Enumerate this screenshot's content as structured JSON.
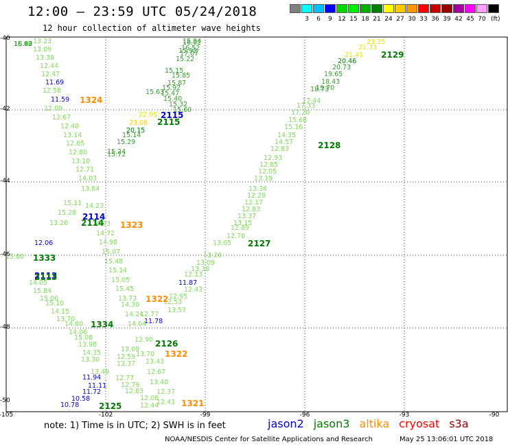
{
  "header": {
    "title": "12:00 – 23:59 UTC 05/24/2018",
    "subtitle": "12 hour collection of altimeter wave heights"
  },
  "colorbar": {
    "unit": "(ft)",
    "entries": [
      {
        "label": "",
        "color": "#7f7f7f"
      },
      {
        "label": "3",
        "color": "#00ffff"
      },
      {
        "label": "6",
        "color": "#00bfff"
      },
      {
        "label": "9",
        "color": "#0000ff"
      },
      {
        "label": "12",
        "color": "#00d800"
      },
      {
        "label": "15",
        "color": "#00f000"
      },
      {
        "label": "18",
        "color": "#00b000"
      },
      {
        "label": "21",
        "color": "#008000"
      },
      {
        "label": "24",
        "color": "#ffff00"
      },
      {
        "label": "27",
        "color": "#ffc800"
      },
      {
        "label": "30",
        "color": "#ff9600"
      },
      {
        "label": "33",
        "color": "#ff0000"
      },
      {
        "label": "36",
        "color": "#c80000"
      },
      {
        "label": "39",
        "color": "#960000"
      },
      {
        "label": "42",
        "color": "#a000a0"
      },
      {
        "label": "45",
        "color": "#ff00ff"
      },
      {
        "label": "70",
        "color": "#ffa0ff"
      },
      {
        "label": "",
        "color": "#000000"
      }
    ]
  },
  "map": {
    "lat_labels": [
      "-40",
      "-42",
      "-44",
      "-46",
      "-48",
      "-50"
    ],
    "lon_labels": [
      "-105",
      "-102",
      "-99",
      "-96",
      "-93",
      "-90"
    ]
  },
  "colors": {
    "light_green": "#7ed957",
    "green": "#33a02c",
    "dark_green": "#007a00",
    "blue": "#0000cc",
    "yellow": "#e6e600",
    "orange": "#ff8c00"
  },
  "track_labels": [
    {
      "text": "2129",
      "color": "#007a00"
    },
    {
      "text": "2128",
      "color": "#007a00"
    },
    {
      "text": "2127",
      "color": "#007a00"
    },
    {
      "text": "2126",
      "color": "#007a00"
    },
    {
      "text": "2125",
      "color": "#007a00"
    },
    {
      "text": "2115",
      "color": "#0000cc"
    },
    {
      "text": "2115",
      "color": "#007a00"
    },
    {
      "text": "2114",
      "color": "#0000cc"
    },
    {
      "text": "2114",
      "color": "#007a00"
    },
    {
      "text": "2113",
      "color": "#0000cc"
    },
    {
      "text": "2113",
      "color": "#007a00"
    },
    {
      "text": "1333",
      "color": "#007a00"
    },
    {
      "text": "1334",
      "color": "#007a00"
    },
    {
      "text": "1324",
      "color": "#ff8c00"
    },
    {
      "text": "1323",
      "color": "#ff8c00"
    },
    {
      "text": "1322",
      "color": "#ff8c00"
    },
    {
      "text": "1322",
      "color": "#ff8c00"
    },
    {
      "text": "1321",
      "color": "#ff8c00"
    }
  ],
  "wave_labels": [
    {
      "text": "13.23",
      "color": "#7ed957"
    },
    {
      "text": "13.09",
      "color": "#7ed957"
    },
    {
      "text": "13.38",
      "color": "#7ed957"
    },
    {
      "text": "12.44",
      "color": "#7ed957"
    },
    {
      "text": "12.47",
      "color": "#7ed957"
    },
    {
      "text": "11.69",
      "color": "#0000cc"
    },
    {
      "text": "12.58",
      "color": "#7ed957"
    },
    {
      "text": "11.59",
      "color": "#0000cc"
    },
    {
      "text": "12.09",
      "color": "#7ed957"
    },
    {
      "text": "12.67",
      "color": "#7ed957"
    },
    {
      "text": "12.40",
      "color": "#7ed957"
    },
    {
      "text": "13.14",
      "color": "#7ed957"
    },
    {
      "text": "12.65",
      "color": "#7ed957"
    },
    {
      "text": "12.80",
      "color": "#7ed957"
    },
    {
      "text": "13.10",
      "color": "#7ed957"
    },
    {
      "text": "12.71",
      "color": "#7ed957"
    },
    {
      "text": "14.03",
      "color": "#7ed957"
    },
    {
      "text": "13.84",
      "color": "#7ed957"
    },
    {
      "text": "14.23",
      "color": "#7ed957"
    },
    {
      "text": "14.93",
      "color": "#7ed957"
    },
    {
      "text": "14.72",
      "color": "#7ed957"
    },
    {
      "text": "14.98",
      "color": "#7ed957"
    },
    {
      "text": "15.07",
      "color": "#7ed957"
    },
    {
      "text": "15.48",
      "color": "#7ed957"
    },
    {
      "text": "15.14",
      "color": "#7ed957"
    },
    {
      "text": "15.05",
      "color": "#7ed957"
    },
    {
      "text": "15.45",
      "color": "#7ed957"
    },
    {
      "text": "13.73",
      "color": "#7ed957"
    },
    {
      "text": "14.30",
      "color": "#7ed957"
    },
    {
      "text": "14.24",
      "color": "#7ed957"
    },
    {
      "text": "14.04",
      "color": "#7ed957"
    },
    {
      "text": "15.11",
      "color": "#7ed957"
    },
    {
      "text": "15.28",
      "color": "#7ed957"
    },
    {
      "text": "13.20",
      "color": "#7ed957"
    },
    {
      "text": "12.06",
      "color": "#0000cc"
    },
    {
      "text": "15.80",
      "color": "#7ed957"
    },
    {
      "text": "14.05",
      "color": "#7ed957"
    },
    {
      "text": "15.84",
      "color": "#7ed957"
    },
    {
      "text": "15.00",
      "color": "#7ed957"
    },
    {
      "text": "15.10",
      "color": "#7ed957"
    },
    {
      "text": "14.15",
      "color": "#7ed957"
    },
    {
      "text": "13.70",
      "color": "#7ed957"
    },
    {
      "text": "14.80",
      "color": "#7ed957"
    },
    {
      "text": "14.06",
      "color": "#7ed957"
    },
    {
      "text": "15.08",
      "color": "#7ed957"
    },
    {
      "text": "13.98",
      "color": "#7ed957"
    },
    {
      "text": "14.35",
      "color": "#7ed957"
    },
    {
      "text": "13.30",
      "color": "#7ed957"
    },
    {
      "text": "13.49",
      "color": "#7ed957"
    },
    {
      "text": "11.94",
      "color": "#0000cc"
    },
    {
      "text": "11.11",
      "color": "#0000cc"
    },
    {
      "text": "11.72",
      "color": "#0000cc"
    },
    {
      "text": "10.58",
      "color": "#0000cc"
    },
    {
      "text": "10.78",
      "color": "#0000cc"
    },
    {
      "text": "12.90",
      "color": "#7ed957"
    },
    {
      "text": "13.09",
      "color": "#7ed957"
    },
    {
      "text": "13.70",
      "color": "#7ed957"
    },
    {
      "text": "12.59",
      "color": "#7ed957"
    },
    {
      "text": "13.37",
      "color": "#7ed957"
    },
    {
      "text": "13.43",
      "color": "#7ed957"
    },
    {
      "text": "12.67",
      "color": "#7ed957"
    },
    {
      "text": "12.77",
      "color": "#7ed957"
    },
    {
      "text": "12.79",
      "color": "#7ed957"
    },
    {
      "text": "13.40",
      "color": "#7ed957"
    },
    {
      "text": "12.83",
      "color": "#7ed957"
    },
    {
      "text": "12.37",
      "color": "#7ed957"
    },
    {
      "text": "12.08",
      "color": "#7ed957"
    },
    {
      "text": "12.44",
      "color": "#7ed957"
    },
    {
      "text": "12.41",
      "color": "#7ed957"
    },
    {
      "text": "11.78",
      "color": "#0000cc"
    },
    {
      "text": "12.77",
      "color": "#7ed957"
    },
    {
      "text": "13.57",
      "color": "#7ed957"
    },
    {
      "text": "12.53",
      "color": "#7ed957"
    },
    {
      "text": "12.95",
      "color": "#7ed957"
    },
    {
      "text": "12.43",
      "color": "#7ed957"
    },
    {
      "text": "11.87",
      "color": "#0000cc"
    },
    {
      "text": "12.13",
      "color": "#7ed957"
    },
    {
      "text": "13.38",
      "color": "#7ed957"
    },
    {
      "text": "13.09",
      "color": "#7ed957"
    },
    {
      "text": "13.26",
      "color": "#7ed957"
    },
    {
      "text": "13.05",
      "color": "#7ed957"
    },
    {
      "text": "12.76",
      "color": "#7ed957"
    },
    {
      "text": "12.89",
      "color": "#7ed957"
    },
    {
      "text": "13.15",
      "color": "#7ed957"
    },
    {
      "text": "13.37",
      "color": "#7ed957"
    },
    {
      "text": "12.83",
      "color": "#7ed957"
    },
    {
      "text": "12.17",
      "color": "#7ed957"
    },
    {
      "text": "12.28",
      "color": "#7ed957"
    },
    {
      "text": "13.36",
      "color": "#7ed957"
    },
    {
      "text": "13.19",
      "color": "#7ed957"
    },
    {
      "text": "12.05",
      "color": "#7ed957"
    },
    {
      "text": "12.85",
      "color": "#7ed957"
    },
    {
      "text": "12.93",
      "color": "#7ed957"
    },
    {
      "text": "12.83",
      "color": "#7ed957"
    },
    {
      "text": "14.57",
      "color": "#7ed957"
    },
    {
      "text": "14.35",
      "color": "#7ed957"
    },
    {
      "text": "15.16",
      "color": "#7ed957"
    },
    {
      "text": "15.68",
      "color": "#7ed957"
    },
    {
      "text": "17.20",
      "color": "#7ed957"
    },
    {
      "text": "17.33",
      "color": "#7ed957"
    },
    {
      "text": "17.44",
      "color": "#7ed957"
    },
    {
      "text": "18.73",
      "color": "#33a02c"
    },
    {
      "text": "19.70",
      "color": "#33a02c"
    },
    {
      "text": "18.43",
      "color": "#33a02c"
    },
    {
      "text": "19.65",
      "color": "#33a02c"
    },
    {
      "text": "20.73",
      "color": "#33a02c"
    },
    {
      "text": "20.46",
      "color": "#007a00"
    },
    {
      "text": "21.41",
      "color": "#e6e600"
    },
    {
      "text": "21.33",
      "color": "#e6e600"
    },
    {
      "text": "23.35",
      "color": "#e6e600"
    },
    {
      "text": "22.95",
      "color": "#e6e600"
    },
    {
      "text": "23.08",
      "color": "#ffc800"
    },
    {
      "text": "20.15",
      "color": "#007a00"
    },
    {
      "text": "15.14",
      "color": "#33a02c"
    },
    {
      "text": "15.29",
      "color": "#33a02c"
    },
    {
      "text": "15.72",
      "color": "#33a02c"
    },
    {
      "text": "15.24",
      "color": "#33a02c"
    },
    {
      "text": "15.63",
      "color": "#33a02c"
    },
    {
      "text": "15.15",
      "color": "#33a02c"
    },
    {
      "text": "15.22",
      "color": "#33a02c"
    },
    {
      "text": "17.07",
      "color": "#33a02c"
    },
    {
      "text": "16.52",
      "color": "#33a02c"
    },
    {
      "text": "16.02",
      "color": "#33a02c"
    },
    {
      "text": "15.94",
      "color": "#33a02c"
    },
    {
      "text": "15.92",
      "color": "#33a02c"
    },
    {
      "text": "15.85",
      "color": "#33a02c"
    },
    {
      "text": "15.87",
      "color": "#33a02c"
    },
    {
      "text": "15.92",
      "color": "#33a02c"
    },
    {
      "text": "15.47",
      "color": "#33a02c"
    },
    {
      "text": "15.40",
      "color": "#33a02c"
    },
    {
      "text": "15.32",
      "color": "#33a02c"
    },
    {
      "text": "15.60",
      "color": "#33a02c"
    },
    {
      "text": "15.83",
      "color": "#33a02c"
    },
    {
      "text": "16.40",
      "color": "#33a02c"
    },
    {
      "text": "16.03",
      "color": "#33a02c"
    },
    {
      "text": "16.07",
      "color": "#33a02c"
    }
  ],
  "footer": {
    "note": "note: 1) Time is in UTC; 2) SWH is in feet",
    "legend": [
      {
        "name": "jason2",
        "color": "#0000cc"
      },
      {
        "name": "jason3",
        "color": "#007a00"
      },
      {
        "name": "altika",
        "color": "#ff8c00"
      },
      {
        "name": "cryosat",
        "color": "#ff0000"
      },
      {
        "name": "s3a",
        "color": "#8b0000"
      }
    ],
    "credit": "NOAA/NESDIS Center for Satellite Applications and Research",
    "timestamp": "May 25 13:06:01 UTC 2018"
  }
}
